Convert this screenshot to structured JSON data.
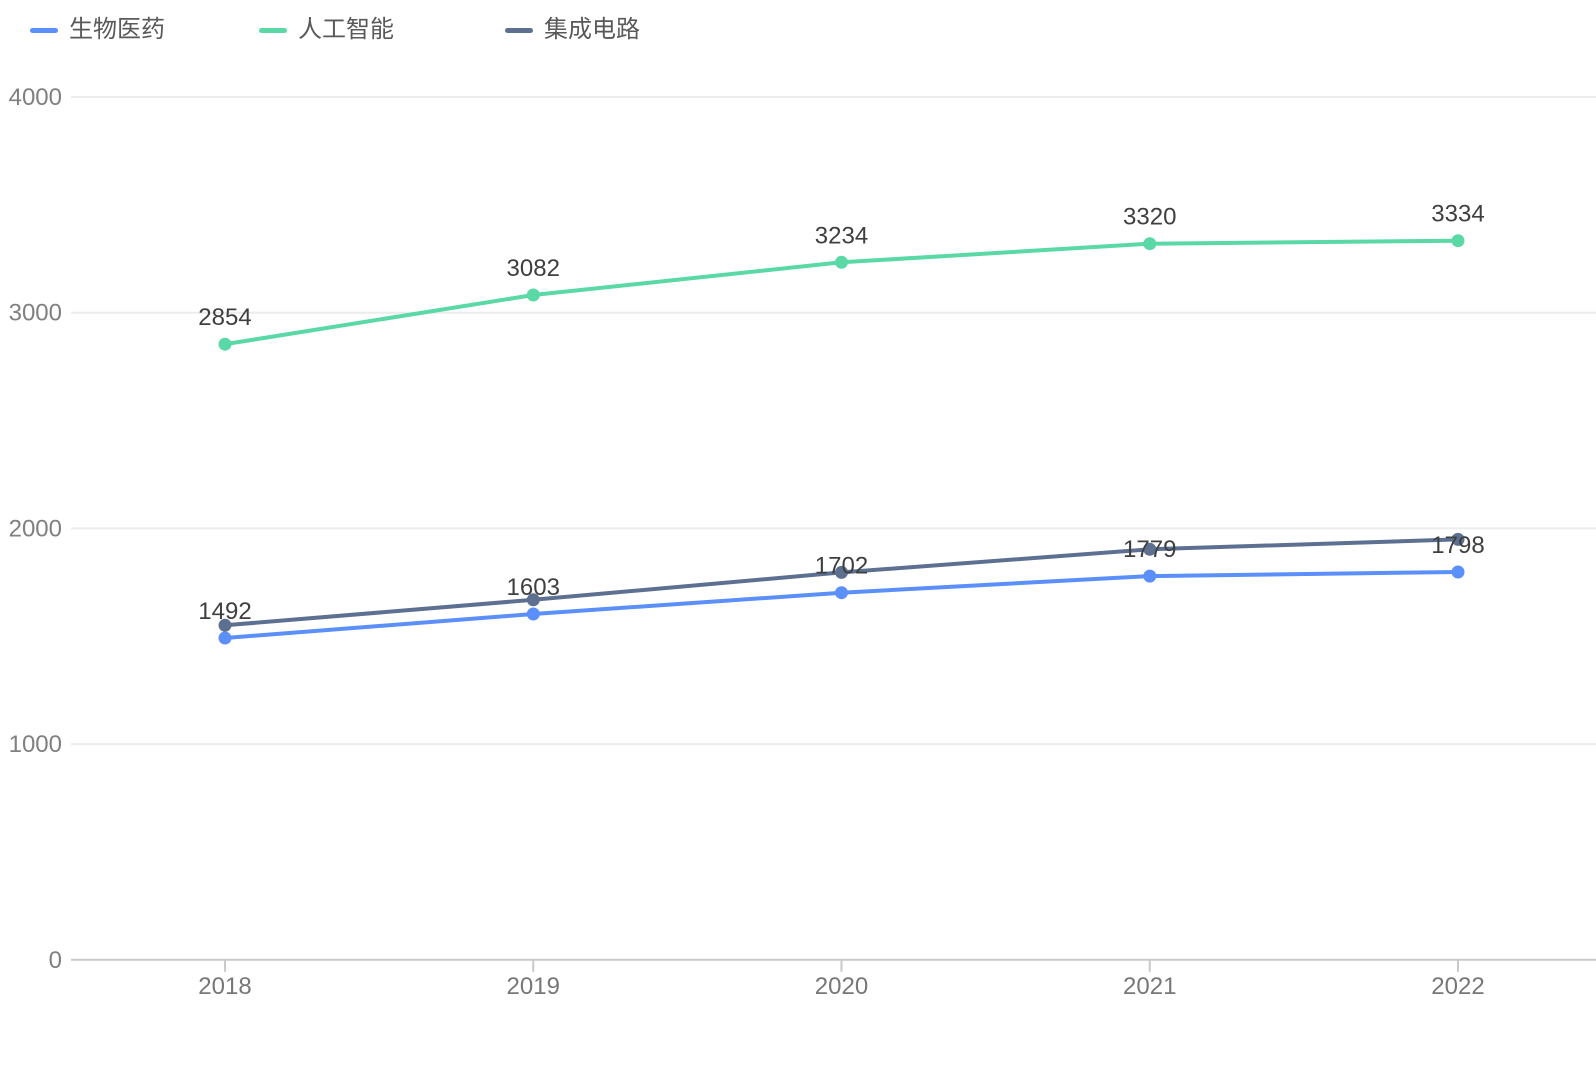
{
  "chart_data": {
    "type": "line",
    "title": "",
    "xlabel": "",
    "ylabel": "",
    "categories": [
      "2018",
      "2019",
      "2020",
      "2021",
      "2022"
    ],
    "series": [
      {
        "name": "生物医药",
        "color": "#5B8FF9",
        "values": [
          1492,
          1603,
          1702,
          1779,
          1798
        ],
        "labels_visible": true
      },
      {
        "name": "人工智能",
        "color": "#5AD8A6",
        "values": [
          2854,
          3082,
          3234,
          3320,
          3334
        ],
        "labels_visible": true
      },
      {
        "name": "集成电路",
        "color": "#5D7092",
        "values": [
          1551,
          1669,
          1796,
          1903,
          1949
        ],
        "labels_visible": false
      }
    ],
    "ylim": [
      0,
      4000
    ],
    "yticks": [
      0,
      1000,
      2000,
      3000,
      4000
    ],
    "grid": true,
    "legend_position": "top-left"
  },
  "legend": {
    "items": [
      {
        "label": "生物医药",
        "color": "#5B8FF9"
      },
      {
        "label": "人工智能",
        "color": "#5AD8A6"
      },
      {
        "label": "集成电路",
        "color": "#5D7092"
      }
    ]
  },
  "colors": {
    "background": "#ffffff",
    "gridline": "#ececec",
    "axis_line": "#c9c9c9",
    "axis_text": "#808080",
    "data_label_text": "#3f3f3f",
    "legend_text": "#595959"
  }
}
